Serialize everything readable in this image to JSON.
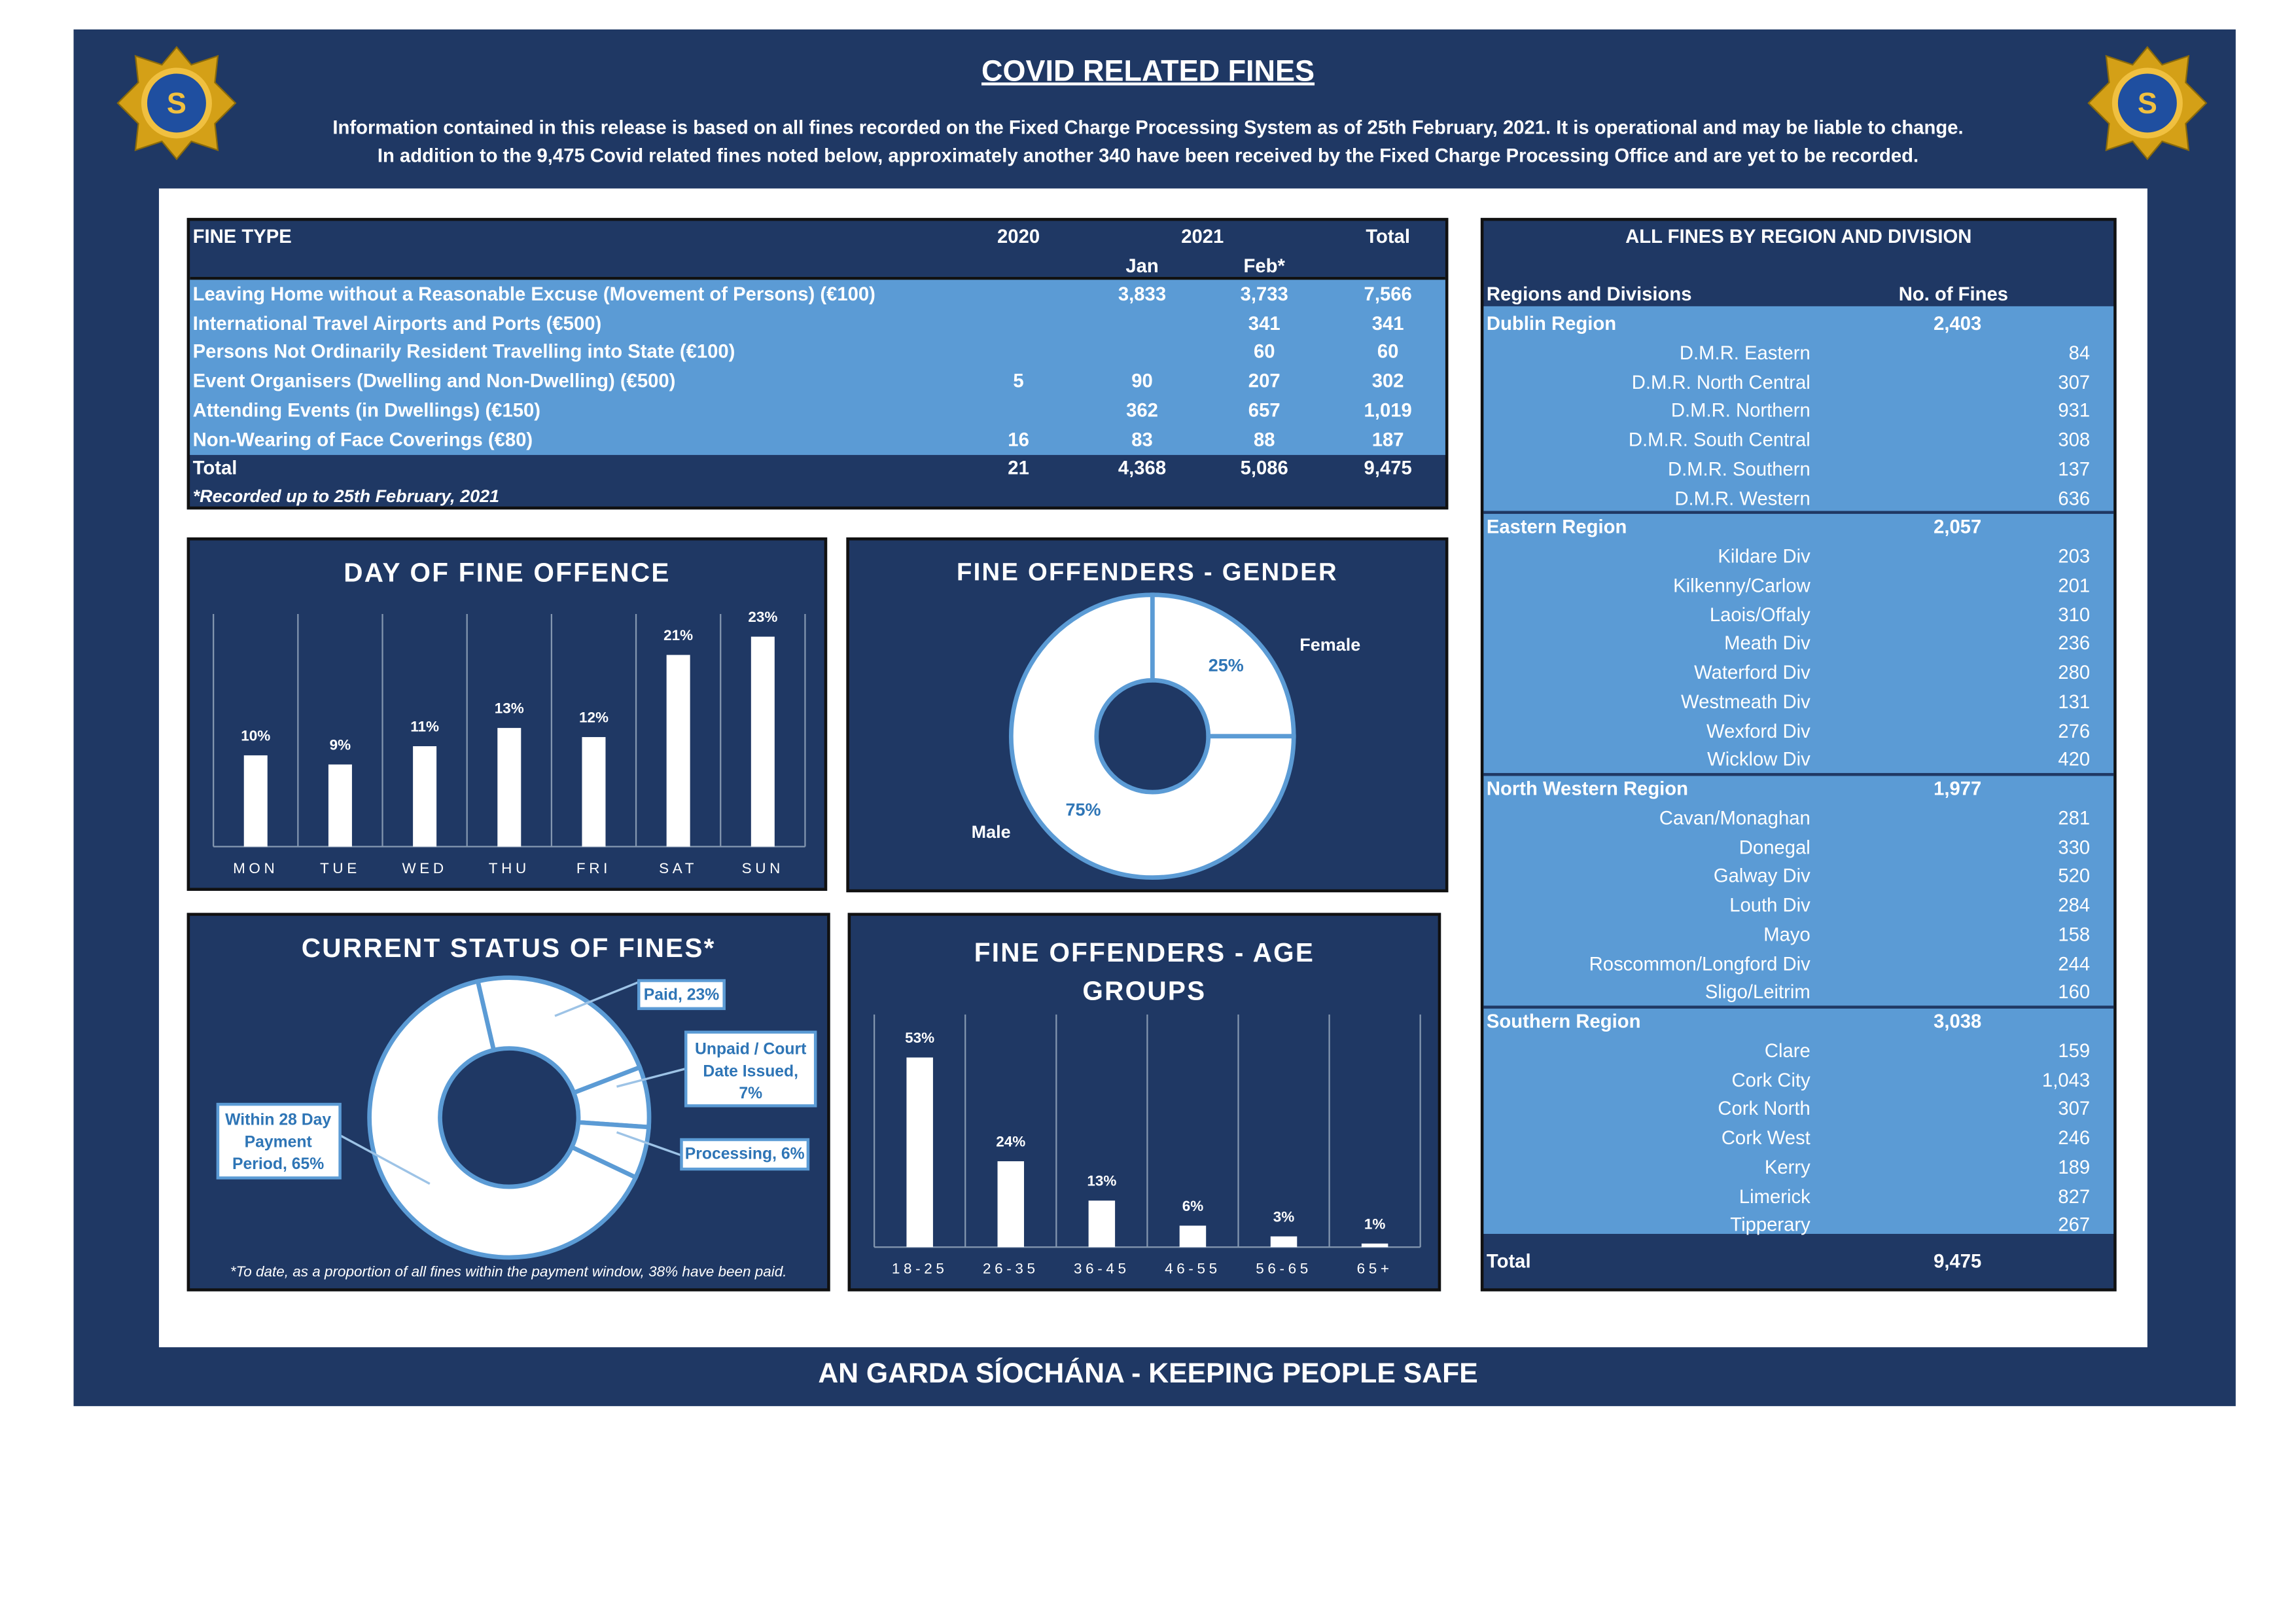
{
  "header": {
    "title": "COVID RELATED FINES",
    "info_line_1": "Information contained in this release is based on all fines recorded on the Fixed Charge Processing System as of 25th February, 2021.  It is operational and may be liable to change.",
    "info_line_2": "In addition to the 9,475 Covid related fines noted below, approximately another 340 have been received by the Fixed Charge Processing Office and are yet to be recorded.",
    "logo_text": "Garda Síochána na hÉireann"
  },
  "footer": "AN GARDA SÍOCHÁNA - KEEPING PEOPLE SAFE",
  "colors": {
    "navy": "#1f3864",
    "light_blue": "#5b9bd5",
    "white": "#ffffff",
    "gold": "#d4a017"
  },
  "fine_table": {
    "headers": {
      "type": "FINE TYPE",
      "y2020": "2020",
      "y2021": "2021",
      "total": "Total",
      "jan": "Jan",
      "feb": "Feb*"
    },
    "rows": [
      {
        "type": "Leaving Home without a Reasonable Excuse (Movement of Persons) (€100)",
        "y2020": "",
        "jan": "3,833",
        "feb": "3,733",
        "total": "7,566"
      },
      {
        "type": "International Travel Airports and Ports (€500)",
        "y2020": "",
        "jan": "",
        "feb": "341",
        "total": "341"
      },
      {
        "type": "Persons Not Ordinarily Resident Travelling into State (€100)",
        "y2020": "",
        "jan": "",
        "feb": "60",
        "total": "60"
      },
      {
        "type": "Event Organisers (Dwelling and Non-Dwelling) (€500)",
        "y2020": "5",
        "jan": "90",
        "feb": "207",
        "total": "302"
      },
      {
        "type": "Attending Events (in Dwellings) (€150)",
        "y2020": "",
        "jan": "362",
        "feb": "657",
        "total": "1,019"
      },
      {
        "type": "Non-Wearing of Face Coverings (€80)",
        "y2020": "16",
        "jan": "83",
        "feb": "88",
        "total": "187"
      }
    ],
    "total": {
      "type": "Total",
      "y2020": "21",
      "jan": "4,368",
      "feb": "5,086",
      "total": "9,475"
    },
    "note": "*Recorded up to 25th February, 2021"
  },
  "region_table": {
    "title": "ALL FINES BY REGION AND DIVISION",
    "col_label": "Regions and Divisions",
    "col_value": "No. of Fines",
    "regions": [
      {
        "name": "Dublin Region",
        "total": "2,403",
        "divisions": [
          {
            "name": "D.M.R. Eastern",
            "value": "84"
          },
          {
            "name": "D.M.R. North Central",
            "value": "307"
          },
          {
            "name": "D.M.R. Northern",
            "value": "931"
          },
          {
            "name": "D.M.R. South Central",
            "value": "308"
          },
          {
            "name": "D.M.R. Southern",
            "value": "137"
          },
          {
            "name": "D.M.R. Western",
            "value": "636"
          }
        ]
      },
      {
        "name": "Eastern Region",
        "total": "2,057",
        "divisions": [
          {
            "name": "Kildare Div",
            "value": "203"
          },
          {
            "name": "Kilkenny/Carlow",
            "value": "201"
          },
          {
            "name": "Laois/Offaly",
            "value": "310"
          },
          {
            "name": "Meath Div",
            "value": "236"
          },
          {
            "name": "Waterford Div",
            "value": "280"
          },
          {
            "name": "Westmeath Div",
            "value": "131"
          },
          {
            "name": "Wexford Div",
            "value": "276"
          },
          {
            "name": "Wicklow Div",
            "value": "420"
          }
        ]
      },
      {
        "name": "North Western Region",
        "total": "1,977",
        "divisions": [
          {
            "name": "Cavan/Monaghan",
            "value": "281"
          },
          {
            "name": "Donegal",
            "value": "330"
          },
          {
            "name": "Galway Div",
            "value": "520"
          },
          {
            "name": "Louth Div",
            "value": "284"
          },
          {
            "name": "Mayo",
            "value": "158"
          },
          {
            "name": "Roscommon/Longford Div",
            "value": "244"
          },
          {
            "name": "Sligo/Leitrim",
            "value": "160"
          }
        ]
      },
      {
        "name": "Southern Region",
        "total": "3,038",
        "divisions": [
          {
            "name": "Clare",
            "value": "159"
          },
          {
            "name": "Cork City",
            "value": "1,043"
          },
          {
            "name": "Cork North",
            "value": "307"
          },
          {
            "name": "Cork West",
            "value": "246"
          },
          {
            "name": "Kerry",
            "value": "189"
          },
          {
            "name": "Limerick",
            "value": "827"
          },
          {
            "name": "Tipperary",
            "value": "267"
          }
        ]
      }
    ],
    "total_label": "Total",
    "total_value": "9,475"
  },
  "chart_data": [
    {
      "type": "bar",
      "title": "DAY OF FINE OFFENCE",
      "categories": [
        "MON",
        "TUE",
        "WED",
        "THU",
        "FRI",
        "SAT",
        "SUN"
      ],
      "values": [
        10,
        9,
        11,
        13,
        12,
        21,
        23
      ],
      "labels": [
        "10%",
        "9%",
        "11%",
        "13%",
        "12%",
        "21%",
        "23%"
      ],
      "unit": "%",
      "ylim": [
        0,
        25
      ]
    },
    {
      "type": "pie",
      "title": "FINE OFFENDERS - GENDER",
      "donut": true,
      "categories": [
        "Female",
        "Male"
      ],
      "values": [
        25,
        75
      ],
      "labels": [
        "25%",
        "75%"
      ]
    },
    {
      "type": "pie",
      "title": "CURRENT STATUS OF FINES*",
      "donut": true,
      "categories": [
        "Paid",
        "Unpaid / Court Date Issued",
        "Processing",
        "Within 28 Day Payment Period"
      ],
      "values": [
        23,
        7,
        6,
        65
      ],
      "labels": [
        "Paid, 23%",
        "Unpaid / Court Date Issued, 7%",
        "Processing, 6%",
        "Within 28 Day Payment Period, 65%"
      ],
      "note": "*To date, as a proportion of all fines within the payment window, 38% have been paid."
    },
    {
      "type": "bar",
      "title": "FINE OFFENDERS - AGE GROUPS",
      "categories": [
        "18-25",
        "26-35",
        "36-45",
        "46-55",
        "56-65",
        "65+"
      ],
      "values": [
        53,
        24,
        13,
        6,
        3,
        1
      ],
      "labels": [
        "53%",
        "24%",
        "13%",
        "6%",
        "3%",
        "1%"
      ],
      "unit": "%",
      "ylim": [
        0,
        60
      ]
    }
  ]
}
